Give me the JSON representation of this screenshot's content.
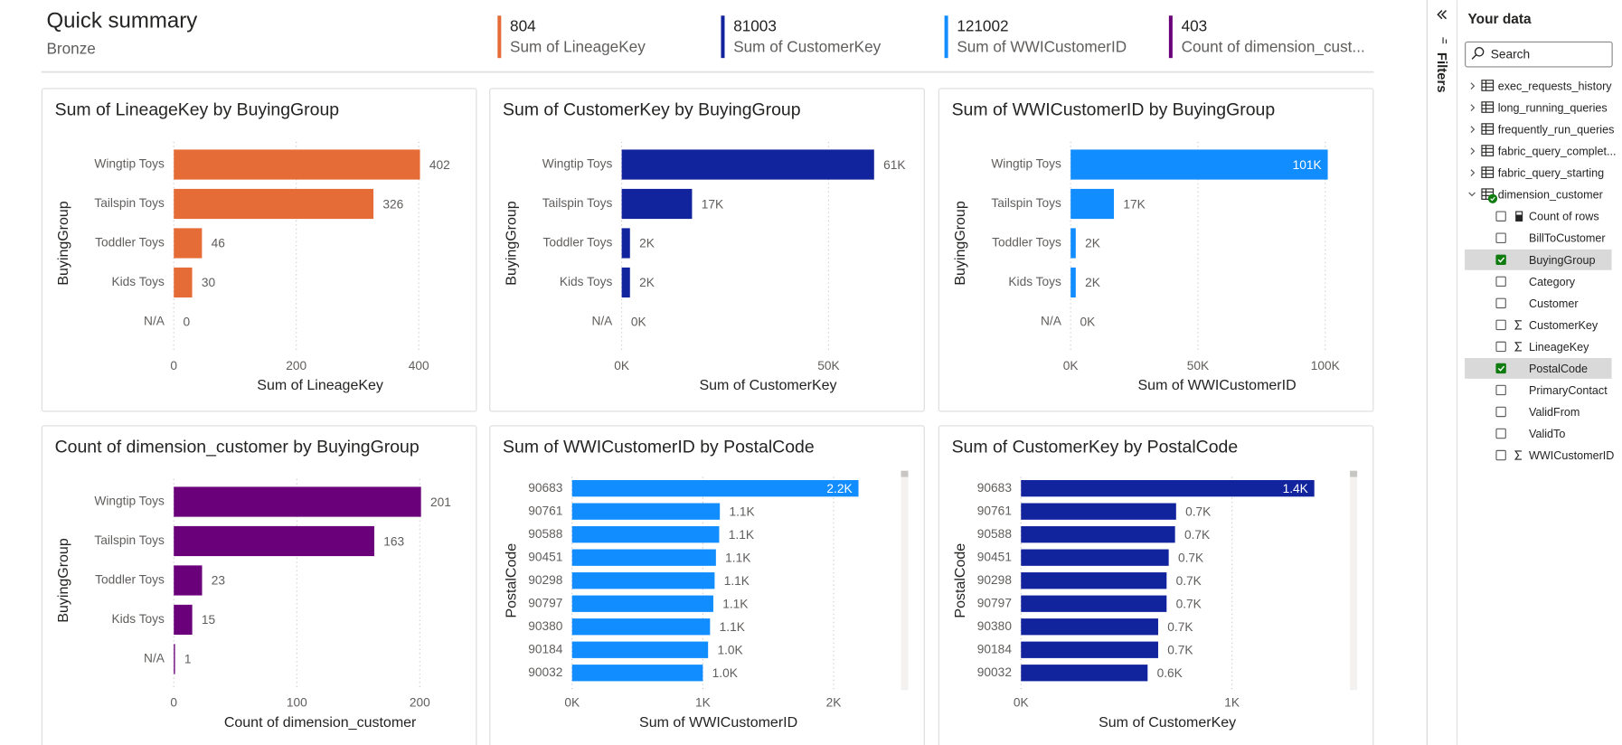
{
  "header": {
    "title": "Quick summary",
    "subtitle": "Bronze"
  },
  "cards": [
    {
      "value": 804,
      "label": "Sum of LineageKey",
      "color": "#E66C37"
    },
    {
      "value": 81003,
      "label": "Sum of CustomerKey",
      "color": "#12239E"
    },
    {
      "value": 121002,
      "label": "Sum of WWICustomerID",
      "color": "#118DFF"
    },
    {
      "value": 403,
      "label": "Count of dimension_cust...",
      "color": "#6B007B"
    }
  ],
  "chart_data": [
    {
      "type": "bar",
      "orientation": "horizontal",
      "title": "Sum of LineageKey by BuyingGroup",
      "x_label": "Sum of LineageKey",
      "y_label": "BuyingGroup",
      "categories": [
        "Wingtip Toys",
        "Tailspin Toys",
        "Toddler Toys",
        "Kids Toys",
        "N/A"
      ],
      "values": [
        402,
        326,
        46,
        30,
        0
      ],
      "color": "#E66C37",
      "xlim": [
        0,
        478
      ],
      "xticks": [
        0,
        200,
        400
      ],
      "grid": true
    },
    {
      "type": "bar",
      "orientation": "horizontal",
      "title": "Sum of CustomerKey by BuyingGroup",
      "x_label": "Sum of CustomerKey",
      "y_label": "BuyingGroup",
      "categories": [
        "Wingtip Toys",
        "Tailspin Toys",
        "Toddler Toys",
        "Kids Toys",
        "N/A"
      ],
      "values": [
        61000,
        17000,
        2000,
        2000,
        0
      ],
      "value_labels": [
        "61K",
        "17K",
        "2K",
        "2K",
        "0K"
      ],
      "color": "#12239E",
      "xlim": [
        0,
        70750
      ],
      "xticks": [
        {
          "value": 0,
          "label": "0K"
        },
        {
          "value": 50000,
          "label": "50K"
        }
      ],
      "grid": true
    },
    {
      "type": "bar",
      "orientation": "horizontal",
      "title": "Sum of WWICustomerID by BuyingGroup",
      "x_label": "Sum of WWICustomerID",
      "y_label": "BuyingGroup",
      "categories": [
        "Wingtip Toys",
        "Tailspin Toys",
        "Toddler Toys",
        "Kids Toys",
        "N/A"
      ],
      "values": [
        101000,
        17000,
        2000,
        2000,
        0
      ],
      "value_labels": [
        "101K",
        "17K",
        "2K",
        "2K",
        "0K"
      ],
      "color": "#118DFF",
      "xlim": [
        0,
        115000
      ],
      "xticks": [
        {
          "value": 0,
          "label": "0K"
        },
        {
          "value": 50000,
          "label": "50K"
        },
        {
          "value": 100000,
          "label": "100K"
        }
      ],
      "grid": true
    },
    {
      "type": "bar",
      "orientation": "horizontal",
      "title": "Count of dimension_customer by BuyingGroup",
      "x_label": "Count of dimension_customer",
      "y_label": "BuyingGroup",
      "categories": [
        "Wingtip Toys",
        "Tailspin Toys",
        "Toddler Toys",
        "Kids Toys",
        "N/A"
      ],
      "values": [
        201,
        163,
        23,
        15,
        1
      ],
      "color": "#6B007B",
      "xlim": [
        0,
        238
      ],
      "xticks": [
        0,
        100,
        200
      ],
      "grid": true
    },
    {
      "type": "bar",
      "orientation": "horizontal",
      "title": "Sum of WWICustomerID by PostalCode",
      "x_label": "Sum of WWICustomerID",
      "y_label": "PostalCode",
      "categories": [
        "90683",
        "90761",
        "90588",
        "90451",
        "90298",
        "90797",
        "90380",
        "90184",
        "90032"
      ],
      "values": [
        2190,
        1130,
        1125,
        1100,
        1090,
        1080,
        1055,
        1040,
        1000
      ],
      "value_labels": [
        "2.2K",
        "1.1K",
        "1.1K",
        "1.1K",
        "1.1K",
        "1.1K",
        "1.1K",
        "1.0K",
        "1.0K"
      ],
      "color": "#118DFF",
      "xlim": [
        0,
        2420
      ],
      "xticks": [
        {
          "value": 0,
          "label": "0K"
        },
        {
          "value": 1000,
          "label": "1K"
        },
        {
          "value": 2000,
          "label": "2K"
        }
      ],
      "grid": true
    },
    {
      "type": "bar",
      "orientation": "horizontal",
      "title": "Sum of CustomerKey by PostalCode",
      "x_label": "Sum of CustomerKey",
      "y_label": "PostalCode",
      "categories": [
        "90683",
        "90761",
        "90588",
        "90451",
        "90298",
        "90797",
        "90380",
        "90184",
        "90032"
      ],
      "values": [
        1390,
        735,
        730,
        700,
        690,
        690,
        650,
        650,
        600
      ],
      "value_labels": [
        "1.4K",
        "0.7K",
        "0.7K",
        "0.7K",
        "0.7K",
        "0.7K",
        "0.7K",
        "0.7K",
        "0.6K"
      ],
      "color": "#12239E",
      "xlim": [
        0,
        1500
      ],
      "xticks": [
        {
          "value": 0,
          "label": "0K"
        },
        {
          "value": 1000,
          "label": "1K"
        }
      ],
      "grid": true
    }
  ],
  "sidebar": {
    "filters_label": "Filters",
    "title": "Your data",
    "search_placeholder": "Search",
    "tables": [
      {
        "name": "exec_requests_history",
        "expanded": false
      },
      {
        "name": "long_running_queries",
        "expanded": false
      },
      {
        "name": "frequently_run_queries",
        "expanded": false
      },
      {
        "name": "fabric_query_complet...",
        "expanded": false
      },
      {
        "name": "fabric_query_starting",
        "expanded": false
      },
      {
        "name": "dimension_customer",
        "expanded": true,
        "in_use": true,
        "fields": [
          {
            "name": "Count of rows",
            "checked": false,
            "kind": "calculator"
          },
          {
            "name": "BillToCustomer",
            "checked": false
          },
          {
            "name": "BuyingGroup",
            "checked": true
          },
          {
            "name": "Category",
            "checked": false
          },
          {
            "name": "Customer",
            "checked": false
          },
          {
            "name": "CustomerKey",
            "checked": false,
            "kind": "sigma"
          },
          {
            "name": "LineageKey",
            "checked": false,
            "kind": "sigma"
          },
          {
            "name": "PostalCode",
            "checked": true
          },
          {
            "name": "PrimaryContact",
            "checked": false
          },
          {
            "name": "ValidFrom",
            "checked": false
          },
          {
            "name": "ValidTo",
            "checked": false
          },
          {
            "name": "WWICustomerID",
            "checked": false,
            "kind": "sigma"
          }
        ]
      }
    ]
  }
}
